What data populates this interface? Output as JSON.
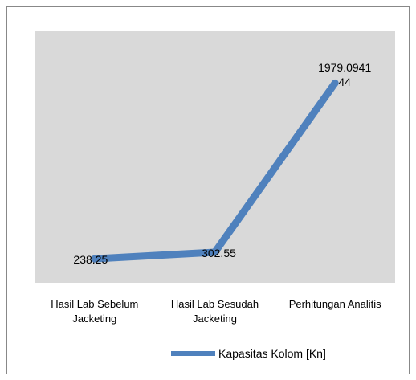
{
  "chart_data": {
    "type": "line",
    "categories": [
      "Hasil Lab Sebelum Jacketing",
      "Hasil Lab Sesudah Jacketing",
      "Perhitungan Analitis"
    ],
    "series": [
      {
        "name": "Kapasitas Kolom [Kn]",
        "color": "#4f81bd",
        "values": [
          238.25,
          302.55,
          1979.094144
        ]
      }
    ],
    "ylim": [
      0,
      2500
    ],
    "grid": false,
    "legend": "bottom"
  }
}
